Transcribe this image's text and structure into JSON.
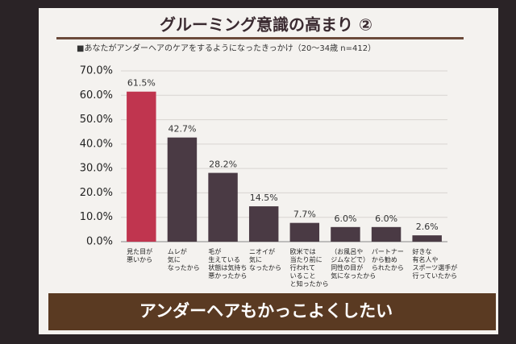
{
  "chart_data": {
    "type": "bar",
    "title": "グルーミング意識の高まり ②",
    "subtitle": "■あなたがアンダーヘアのケアをするようになったきっかけ（20～34歳 n=412）",
    "banner": "アンダーヘアもかっこよくしたい",
    "categories": [
      "見た目が\n悪いから",
      "ムレが\n気に\nなったから",
      "毛が\n生えている\n状態は気持ち\n悪かったから",
      "ニオイが\n気に\nなったから",
      "欧米では\n当たり前に\n行われて\nいること\nと知ったから",
      "（お風呂や\nジムなどで）\n同性の目が\n気になったから",
      "パートナー\nから勧め\nられたから",
      "好きな\n有名人や\nスポーツ選手が\n行っていたから"
    ],
    "values": [
      61.5,
      42.7,
      28.2,
      14.5,
      7.7,
      6.0,
      6.0,
      2.6
    ],
    "value_labels": [
      "61.5%",
      "42.7%",
      "28.2%",
      "14.5%",
      "7.7%",
      "6.0%",
      "6.0%",
      "2.6%"
    ],
    "colors": [
      "#c0354f",
      "#4a3a44",
      "#4a3a44",
      "#4a3a44",
      "#4a3a44",
      "#4a3a44",
      "#4a3a44",
      "#4a3a44"
    ],
    "ylim": [
      0,
      70
    ],
    "yticks": [
      {
        "value": 0,
        "label": "0.0%"
      },
      {
        "value": 10,
        "label": "10.0%"
      },
      {
        "value": 20,
        "label": "20.0%"
      },
      {
        "value": 30,
        "label": "30.0%"
      },
      {
        "value": 40,
        "label": "40.0%"
      },
      {
        "value": 50,
        "label": "50.0%"
      },
      {
        "value": 60,
        "label": "60.0%"
      },
      {
        "value": 70,
        "label": "70.0%"
      }
    ],
    "grid": true
  }
}
